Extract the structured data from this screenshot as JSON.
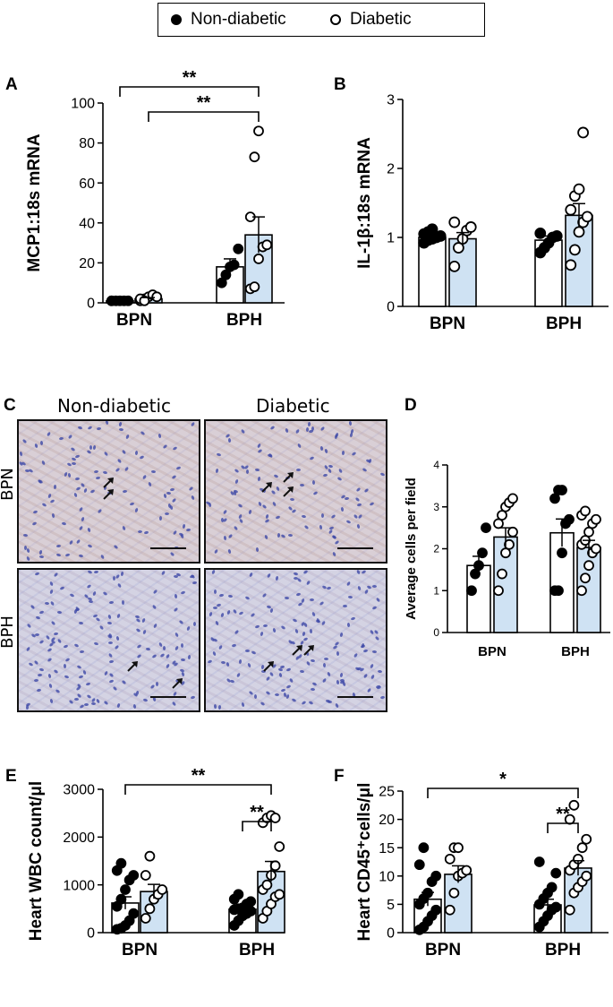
{
  "legend": {
    "non_diabetic": "Non-diabetic",
    "diabetic": "Diabetic"
  },
  "colors": {
    "non_diabetic_fill": "#ffffff",
    "diabetic_fill": "#cfe2f3",
    "marker_filled": "#000000",
    "marker_open": "#ffffff"
  },
  "micrograph": {
    "panel": "C",
    "columns": [
      "Non-diabetic",
      "Diabetic"
    ],
    "rows": [
      "BPN",
      "BPH"
    ]
  },
  "chart_data": [
    {
      "panel": "A",
      "type": "bar",
      "categories": [
        "BPN",
        "BPH"
      ],
      "ylabel": "MCP1:18s mRNA",
      "ylim": [
        0,
        100
      ],
      "yticks": [
        0,
        20,
        40,
        60,
        80,
        100
      ],
      "error_bars": "SEM",
      "series": [
        {
          "name": "Non-diabetic",
          "values": [
            1,
            18
          ],
          "errors": [
            0.3,
            4
          ],
          "points": [
            [
              1,
              1,
              1,
              1,
              1,
              1
            ],
            [
              10,
              14,
              18,
              19,
              27
            ]
          ]
        },
        {
          "name": "Diabetic",
          "values": [
            2,
            34
          ],
          "errors": [
            0.6,
            9
          ],
          "points": [
            [
              1,
              2,
              3,
              4,
              3,
              2,
              1
            ],
            [
              7,
              8,
              22,
              28,
              29,
              43,
              73,
              86
            ]
          ]
        }
      ],
      "significance": [
        {
          "from": [
            0,
            0
          ],
          "to": [
            1,
            1
          ],
          "label": "**"
        },
        {
          "from": [
            0,
            1
          ],
          "to": [
            1,
            1
          ],
          "label": "**"
        }
      ]
    },
    {
      "panel": "B",
      "type": "bar",
      "categories": [
        "BPN",
        "BPH"
      ],
      "ylabel": "IL-1β:18s mRNA",
      "ylim": [
        0,
        3
      ],
      "yticks": [
        0,
        1,
        2,
        3
      ],
      "error_bars": "SEM",
      "series": [
        {
          "name": "Non-diabetic",
          "values": [
            1.0,
            0.96
          ],
          "errors": [
            0.03,
            0.06
          ],
          "points": [
            [
              0.92,
              0.96,
              0.98,
              1.0,
              1.02,
              1.05,
              1.08,
              1.12
            ],
            [
              0.78,
              0.85,
              0.92,
              1.0,
              1.02,
              1.06
            ]
          ]
        },
        {
          "name": "Diabetic",
          "values": [
            0.98,
            1.32
          ],
          "errors": [
            0.09,
            0.17
          ],
          "points": [
            [
              0.58,
              0.85,
              0.98,
              1.1,
              1.15,
              1.22
            ],
            [
              0.6,
              0.82,
              1.08,
              1.22,
              1.3,
              1.4,
              1.6,
              1.7,
              2.52
            ]
          ]
        }
      ]
    },
    {
      "panel": "D",
      "type": "bar",
      "categories": [
        "BPN",
        "BPH"
      ],
      "ylabel": "Average cells per field",
      "ylim": [
        0,
        4
      ],
      "yticks": [
        0,
        1,
        2,
        3,
        4
      ],
      "error_bars": "SEM",
      "series": [
        {
          "name": "Non-diabetic",
          "values": [
            1.6,
            2.38
          ],
          "errors": [
            0.22,
            0.33
          ],
          "points": [
            [
              1.0,
              1.4,
              1.6,
              1.9,
              2.5
            ],
            [
              1.0,
              1.0,
              1.9,
              2.6,
              2.7,
              3.2,
              3.4,
              3.4
            ]
          ]
        },
        {
          "name": "Diabetic",
          "values": [
            2.28,
            2.03
          ],
          "errors": [
            0.22,
            0.17
          ],
          "points": [
            [
              1.0,
              1.4,
              1.9,
              2.1,
              2.4,
              2.6,
              2.8,
              3.0,
              3.1,
              3.2
            ],
            [
              1.0,
              1.3,
              1.6,
              1.9,
              2.0,
              2.1,
              2.2,
              2.4,
              2.6,
              2.7,
              2.8,
              2.9
            ]
          ]
        }
      ]
    },
    {
      "panel": "E",
      "type": "bar",
      "categories": [
        "BPN",
        "BPH"
      ],
      "ylabel": "Heart WBC count/μl",
      "ylim": [
        0,
        3000
      ],
      "yticks": [
        0,
        1000,
        2000,
        3000
      ],
      "error_bars": "SEM",
      "series": [
        {
          "name": "Non-diabetic",
          "values": [
            620,
            490
          ],
          "errors": [
            130,
            60
          ],
          "points": [
            [
              70,
              90,
              150,
              250,
              400,
              550,
              700,
              900,
              1100,
              1200,
              1300,
              1450
            ],
            [
              150,
              250,
              350,
              400,
              450,
              480,
              500,
              520,
              600,
              650,
              700,
              800
            ]
          ]
        },
        {
          "name": "Diabetic",
          "values": [
            860,
            1280
          ],
          "errors": [
            150,
            210
          ],
          "points": [
            [
              300,
              500,
              700,
              800,
              900,
              1200,
              1600
            ],
            [
              300,
              450,
              600,
              750,
              800,
              900,
              1000,
              1200,
              1400,
              1800,
              2300,
              2400,
              2450,
              2400
            ]
          ]
        }
      ],
      "significance": [
        {
          "from": [
            0,
            0
          ],
          "to": [
            1,
            1
          ],
          "label": "**"
        },
        {
          "from": [
            1,
            0
          ],
          "to": [
            1,
            1
          ],
          "label": "**"
        }
      ]
    },
    {
      "panel": "F",
      "type": "bar",
      "categories": [
        "BPN",
        "BPH"
      ],
      "ylabel": "Heart CD45⁺cells/μl",
      "ylim": [
        0,
        25
      ],
      "yticks": [
        0,
        5,
        10,
        15,
        20,
        25
      ],
      "error_bars": "SEM",
      "series": [
        {
          "name": "Non-diabetic",
          "values": [
            5.9,
            4.9
          ],
          "errors": [
            1.2,
            1.0
          ],
          "points": [
            [
              0.5,
              1,
              2,
              3,
              4,
              5,
              6,
              7,
              9,
              10,
              12,
              15
            ],
            [
              1,
              2,
              3,
              4,
              4.5,
              5,
              6,
              7,
              8,
              10.5,
              12.5
            ]
          ]
        },
        {
          "name": "Diabetic",
          "values": [
            10.3,
            11.4
          ],
          "errors": [
            1.5,
            1.3
          ],
          "points": [
            [
              4,
              7,
              10,
              10.5,
              11,
              13,
              15,
              15
            ],
            [
              4,
              7,
              8,
              9,
              10,
              11,
              12,
              13,
              15,
              16.5,
              20,
              22.5
            ]
          ]
        }
      ],
      "significance": [
        {
          "from": [
            0,
            0
          ],
          "to": [
            1,
            1
          ],
          "label": "*"
        },
        {
          "from": [
            1,
            0
          ],
          "to": [
            1,
            1
          ],
          "label": "**"
        }
      ]
    }
  ]
}
